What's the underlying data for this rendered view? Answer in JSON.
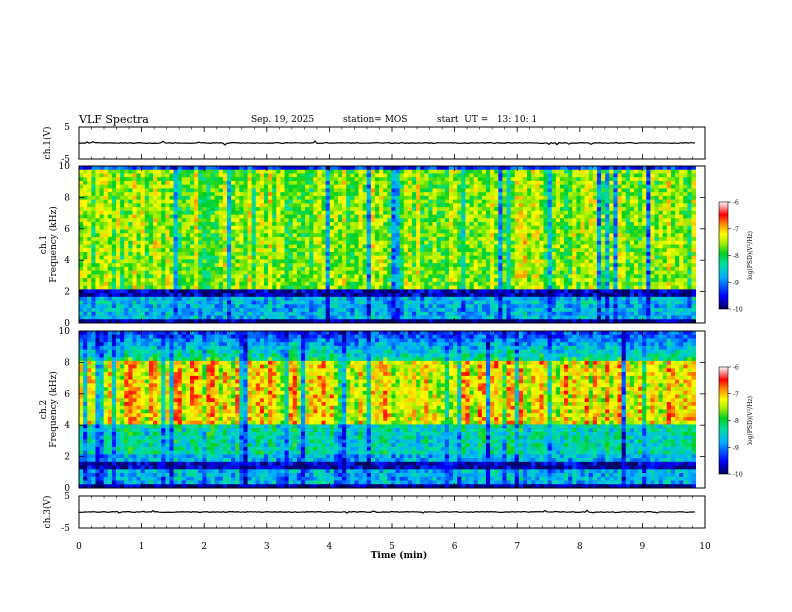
{
  "header": {
    "title": "VLF Spectra",
    "date": "Sep. 19, 2025",
    "station": "station= MOS",
    "start": "start  UT =   13: 10: 1"
  },
  "chart_data": {
    "type": "heatmap",
    "title": "VLF Spectra",
    "xlabel": "Time  (min)",
    "xlim": [
      0,
      10
    ],
    "xticks": [
      0,
      1,
      2,
      3,
      4,
      5,
      6,
      7,
      8,
      9,
      10
    ],
    "data_end_min": 9.85,
    "waveform_panels": [
      {
        "id": "ch1-waveform",
        "ylabel": "ch.1(V)",
        "ylim": [
          -5,
          5
        ],
        "yticks": [
          5,
          -5
        ],
        "baseline": 0
      },
      {
        "id": "ch3-waveform",
        "ylabel": "ch.3(V)",
        "ylim": [
          -5,
          5
        ],
        "yticks": [
          5,
          -5
        ],
        "baseline": 0
      }
    ],
    "spectrogram_panels": [
      {
        "id": "ch1-spectrogram",
        "ylabel": "ch.1\nFrequency  (kHz)",
        "ylabel_parts": [
          "ch.1",
          "Frequency  (kHz)"
        ],
        "ylim": [
          0,
          10
        ],
        "yticks": [
          0,
          2,
          4,
          6,
          8,
          10
        ],
        "dominant_band_khz": [
          2,
          9
        ],
        "noise_line_khz": 1.8
      },
      {
        "id": "ch2-spectrogram",
        "ylabel": "ch.2\nFrequency  (kHz)",
        "ylabel_parts": [
          "ch.2",
          "Frequency  (kHz)"
        ],
        "ylim": [
          0,
          10
        ],
        "yticks": [
          0,
          2,
          4,
          6,
          8,
          10
        ],
        "dominant_band_khz": [
          4,
          7.5
        ],
        "noise_line_khz": 1.5
      }
    ],
    "colorbar": {
      "label": "log(PSD)(V²/Hz)",
      "range": [
        -10,
        -6
      ],
      "ticks": [
        -6,
        -7,
        -8,
        -9,
        -10
      ]
    }
  },
  "colors": {
    "colormap": [
      "#00007a",
      "#0000ff",
      "#0090ff",
      "#00e0e0",
      "#00d040",
      "#a0ee00",
      "#ffff00",
      "#ff9000",
      "#ff0000",
      "#ff8080",
      "#ffffff"
    ],
    "ink": "#000000"
  }
}
